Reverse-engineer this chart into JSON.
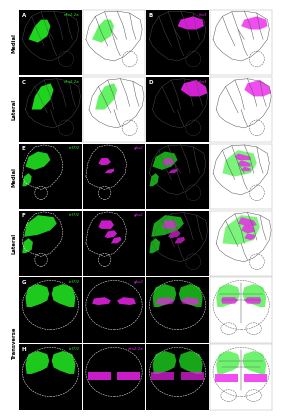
{
  "background": "#ffffff",
  "BLACK": "#000000",
  "WHITE": "#ffffff",
  "GREEN": "#22ee22",
  "MAGENTA": "#ee22ee",
  "OUTLINE": "#888888",
  "OUTLINE_DARK": "#555555",
  "row_labels": [
    "Medial",
    "Lateral",
    "Medial",
    "Lateral",
    "Transverse"
  ],
  "panel_letters": [
    "A",
    "B",
    "C",
    "D",
    "E",
    "F",
    "G",
    "H"
  ],
  "gene_AB_green": "nkx2.2a",
  "gene_AB_magenta": "fox3",
  "gene_CD_green": "nkx2.2a",
  "gene_CD_magenta": "fox3",
  "gene_EF_green": "tcf7l2",
  "gene_EF_magenta": "gbx2",
  "gene_GH_green": "tcf7l2",
  "gene_G_magenta": "gbx2",
  "gene_H_magenta": "nkx2.2a"
}
